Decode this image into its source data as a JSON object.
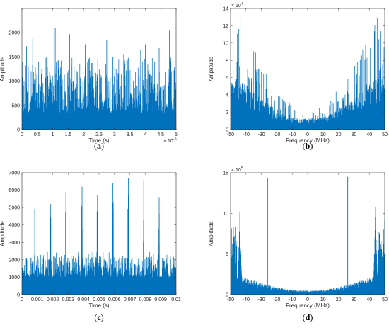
{
  "colors": {
    "series": "#0072BD",
    "axis": "#262626",
    "caption": "#000000"
  },
  "chart_data": [
    {
      "id": "a",
      "type": "line",
      "caption": "a",
      "xlabel": "Time (s)",
      "ylabel": "Amplitude",
      "xlim": [
        0,
        5
      ],
      "ylim": [
        0,
        2500
      ],
      "x_multiplier_label": "× 10",
      "x_multiplier_exp": "-5",
      "xticks": [
        0,
        0.5,
        1,
        1.5,
        2,
        2.5,
        3,
        3.5,
        4,
        4.5,
        5
      ],
      "xtick_labels": [
        "0",
        "0.5",
        "1",
        "1.5",
        "2",
        "2.5",
        "3",
        "3.5",
        "4",
        "4.5",
        "5"
      ],
      "yticks": [
        0,
        500,
        1000,
        1500,
        2000
      ],
      "ytick_labels": [
        "0",
        "500",
        "1000",
        "1500",
        "2000"
      ],
      "series": [
        {
          "shape": "noise",
          "base_level": 350,
          "typical_max": 1300,
          "peaks": [
            {
              "x": 1.08,
              "y": 2100
            },
            {
              "x": 0.35,
              "y": 1880
            },
            {
              "x": 1.55,
              "y": 1970
            },
            {
              "x": 2.05,
              "y": 1760
            },
            {
              "x": 2.75,
              "y": 1850
            },
            {
              "x": 3.3,
              "y": 1560
            },
            {
              "x": 4.0,
              "y": 1760
            },
            {
              "x": 4.45,
              "y": 1680
            },
            {
              "x": 4.78,
              "y": 2040
            },
            {
              "x": 0.15,
              "y": 1720
            },
            {
              "x": 3.85,
              "y": 1640
            },
            {
              "x": 2.95,
              "y": 1500
            }
          ]
        }
      ]
    },
    {
      "id": "b",
      "type": "line",
      "caption": "b",
      "xlabel": "Frequency (MHz)",
      "ylabel": "Amplitude",
      "xlim": [
        -50,
        50
      ],
      "ylim": [
        0,
        140000
      ],
      "y_multiplier_label": "× 10",
      "y_multiplier_exp": "4",
      "xticks": [
        -50,
        -40,
        -30,
        -20,
        -10,
        0,
        10,
        20,
        30,
        40,
        50
      ],
      "xtick_labels": [
        "-50",
        "-40",
        "-30",
        "-20",
        "-10",
        "0",
        "10",
        "20",
        "30",
        "40",
        "50"
      ],
      "yticks": [
        0,
        20000,
        40000,
        60000,
        80000,
        100000,
        120000,
        140000
      ],
      "ytick_labels": [
        "0",
        "2",
        "4",
        "6",
        "8",
        "10",
        "12",
        "14"
      ],
      "series": [
        {
          "shape": "bowl",
          "mean_at_edges": 45000,
          "mean_at_center": 10000,
          "max_at_edges": 135000,
          "max_at_center": 25000
        }
      ]
    },
    {
      "id": "c",
      "type": "line",
      "caption": "c",
      "xlabel": "Time (s)",
      "ylabel": "Amplitude",
      "xlim": [
        0,
        0.01
      ],
      "ylim": [
        0,
        7000
      ],
      "xticks": [
        0,
        0.001,
        0.002,
        0.003,
        0.004,
        0.005,
        0.006,
        0.007,
        0.008,
        0.009,
        0.01
      ],
      "xtick_labels": [
        "0",
        "0.001",
        "0.002",
        "0.003",
        "0.004",
        "0.005",
        "0.006",
        "0.007",
        "0.008",
        "0.009",
        "0.01"
      ],
      "yticks": [
        0,
        1000,
        2000,
        3000,
        4000,
        5000,
        6000,
        7000
      ],
      "ytick_labels": [
        "0",
        "1000",
        "2000",
        "3000",
        "4000",
        "5000",
        "6000",
        "7000"
      ],
      "series": [
        {
          "shape": "pulses",
          "base_level": 1000,
          "typical_max": 2200,
          "peaks": [
            {
              "x": 0.00085,
              "y": 6100
            },
            {
              "x": 0.00185,
              "y": 5200
            },
            {
              "x": 0.00285,
              "y": 5900
            },
            {
              "x": 0.0039,
              "y": 6200
            },
            {
              "x": 0.0049,
              "y": 5700
            },
            {
              "x": 0.0059,
              "y": 6400
            },
            {
              "x": 0.0069,
              "y": 6700
            },
            {
              "x": 0.0079,
              "y": 6600
            },
            {
              "x": 0.0089,
              "y": 5600
            }
          ]
        }
      ]
    },
    {
      "id": "d",
      "type": "line",
      "caption": "d",
      "xlabel": "Frequency (MHz)",
      "ylabel": "Amplitude",
      "xlim": [
        -50,
        50
      ],
      "ylim": [
        0,
        1500000
      ],
      "y_multiplier_label": "× 10",
      "y_multiplier_exp": "5",
      "xticks": [
        -50,
        -40,
        -30,
        -20,
        -10,
        0,
        10,
        20,
        30,
        40,
        50
      ],
      "xtick_labels": [
        "-50",
        "-40",
        "-30",
        "-20",
        "-10",
        "0",
        "10",
        "20",
        "30",
        "40",
        "50"
      ],
      "yticks": [
        0,
        500000,
        1000000,
        1500000
      ],
      "ytick_labels": [
        "0",
        "5",
        "10",
        "15"
      ],
      "series": [
        {
          "shape": "bowl-with-lines",
          "mean_at_edges": 180000,
          "mean_at_center": 40000,
          "clusters": [
            {
              "x": -44,
              "y": 1100000
            },
            {
              "x": 44,
              "y": 1100000
            }
          ],
          "lines": [
            {
              "x": -26,
              "y": 1430000
            },
            {
              "x": 26,
              "y": 1450000
            }
          ]
        }
      ]
    }
  ]
}
